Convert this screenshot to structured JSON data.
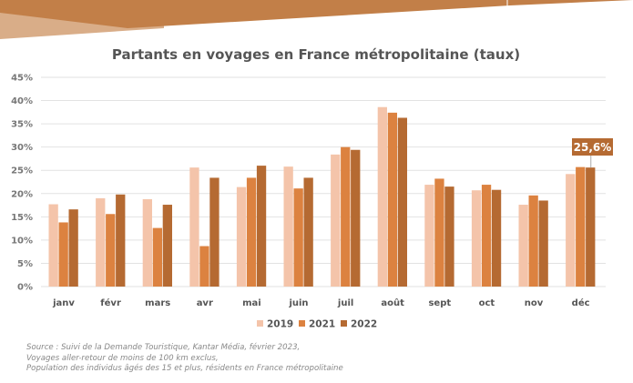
{
  "chart_data": {
    "type": "bar",
    "title": "Partants en voyages en France métropolitaine (taux)",
    "categories": [
      "janv",
      "févr",
      "mars",
      "avr",
      "mai",
      "juin",
      "juil",
      "août",
      "sept",
      "oct",
      "nov",
      "déc"
    ],
    "series": [
      {
        "name": "2019",
        "color": "#f4c4aa",
        "values": [
          17.7,
          19.0,
          18.8,
          25.6,
          21.4,
          25.8,
          28.4,
          38.6,
          21.9,
          20.7,
          17.6,
          24.2
        ]
      },
      {
        "name": "2021",
        "color": "#dc8240",
        "values": [
          13.8,
          15.6,
          12.6,
          8.7,
          23.4,
          21.1,
          30.0,
          37.4,
          23.2,
          21.9,
          19.6,
          25.7
        ]
      },
      {
        "name": "2022",
        "color": "#b56a32",
        "values": [
          16.6,
          19.8,
          17.6,
          23.4,
          26.0,
          23.4,
          29.4,
          36.3,
          21.5,
          20.8,
          18.5,
          25.6
        ]
      }
    ],
    "yticks": [
      "0%",
      "5%",
      "10%",
      "15%",
      "20%",
      "25%",
      "30%",
      "35%",
      "40%",
      "45%"
    ],
    "ylim": [
      0,
      45
    ],
    "grid": true,
    "legend": "bottom-right",
    "annotation": {
      "category": "déc",
      "series": "2022",
      "label": "25,6%"
    }
  },
  "source": [
    "Source : Suivi de la Demande Touristique, Kantar Média, février 2023,",
    "Voyages aller-retour de moins de 100 km exclus,",
    "Population des individus âgés des 15 et plus, résidents en France métropolitaine"
  ],
  "colors": {
    "banner": "#c27f48",
    "banner_light": "#d9ad88"
  }
}
